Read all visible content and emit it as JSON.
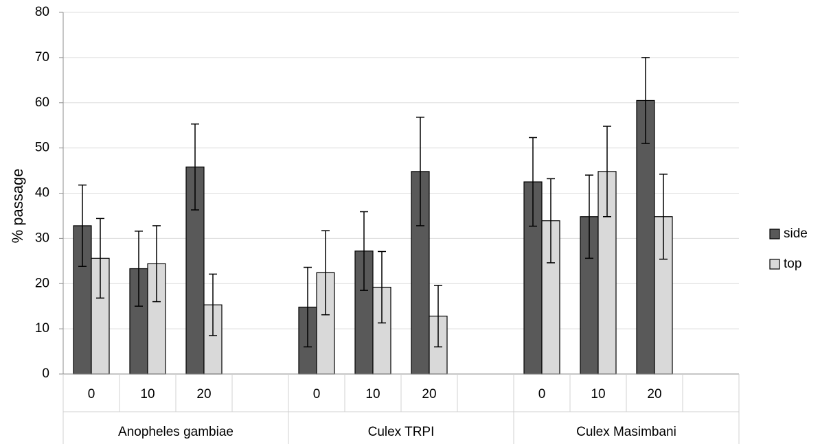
{
  "chart_data": {
    "type": "bar",
    "ylabel": "% passage",
    "ylim": [
      0,
      80
    ],
    "yticks": [
      0,
      10,
      20,
      30,
      40,
      50,
      60,
      70,
      80
    ],
    "grid": true,
    "legend_position": "right",
    "groups": [
      {
        "name": "Anopheles gambiae",
        "categories": [
          "0",
          "10",
          "20"
        ]
      },
      {
        "name": "Culex TRPI",
        "categories": [
          "0",
          "10",
          "20"
        ]
      },
      {
        "name": "Culex Masimbani",
        "categories": [
          "0",
          "10",
          "20"
        ]
      }
    ],
    "series": [
      {
        "name": "side",
        "color": "#595959",
        "values": [
          32.8,
          23.3,
          45.8,
          14.8,
          27.2,
          44.8,
          42.5,
          34.8,
          60.5
        ],
        "errors": [
          9.0,
          8.3,
          9.5,
          8.8,
          8.7,
          12.0,
          9.8,
          9.2,
          9.5
        ]
      },
      {
        "name": "top",
        "color": "#d9d9d9",
        "values": [
          25.6,
          24.4,
          15.3,
          22.4,
          19.2,
          12.8,
          33.9,
          44.8,
          34.8
        ],
        "errors": [
          8.8,
          8.4,
          6.8,
          9.3,
          7.9,
          6.8,
          9.3,
          10.0,
          9.4
        ]
      }
    ]
  }
}
